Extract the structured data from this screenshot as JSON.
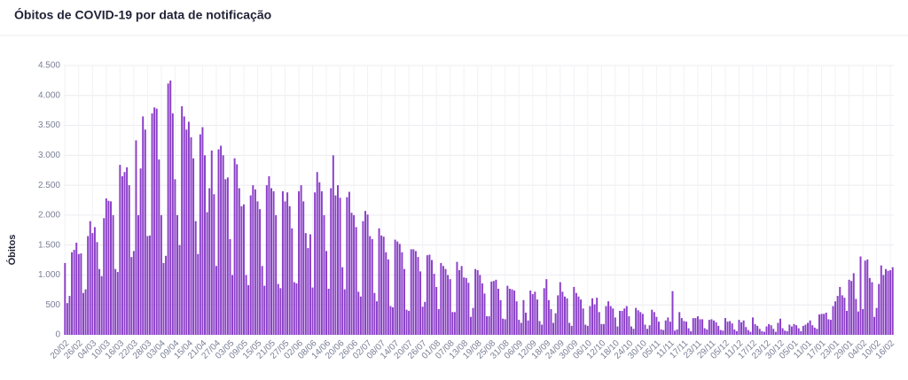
{
  "chart_data": {
    "type": "bar",
    "title": "Óbitos de COVID-19 por data de notificação",
    "y_label": "Óbitos",
    "color": "#8b3fc8",
    "grid": true,
    "ylim": [
      0,
      4500
    ],
    "yticks": [
      0,
      500,
      {
        "value": 1000,
        "label": "1.000"
      },
      {
        "value": 1500,
        "label": "1.500"
      },
      {
        "value": 2000,
        "label": "2.000"
      },
      {
        "value": 2500,
        "label": "2.500"
      },
      {
        "value": 3000,
        "label": "3.000"
      },
      {
        "value": 3500,
        "label": "3.500"
      },
      {
        "value": 4000,
        "label": "4.000"
      },
      {
        "value": 4500,
        "label": "4.500"
      }
    ],
    "categories": [
      "20/02",
      null,
      null,
      null,
      null,
      null,
      "26/02",
      null,
      null,
      null,
      null,
      null,
      "04/03",
      null,
      null,
      null,
      null,
      null,
      "10/03",
      null,
      null,
      null,
      null,
      null,
      "16/03",
      null,
      null,
      null,
      null,
      null,
      "22/03",
      null,
      null,
      null,
      null,
      null,
      "28/03",
      null,
      null,
      null,
      null,
      null,
      "03/04",
      null,
      null,
      null,
      null,
      null,
      "09/04",
      null,
      null,
      null,
      null,
      null,
      "15/04",
      null,
      null,
      null,
      null,
      null,
      "21/04",
      null,
      null,
      null,
      null,
      null,
      "27/04",
      null,
      null,
      null,
      null,
      null,
      "03/05",
      null,
      null,
      null,
      null,
      null,
      "09/05",
      null,
      null,
      null,
      null,
      null,
      "15/05",
      null,
      null,
      null,
      null,
      null,
      "21/05",
      null,
      null,
      null,
      null,
      null,
      "27/05",
      null,
      null,
      null,
      null,
      null,
      "02/06",
      null,
      null,
      null,
      null,
      null,
      "08/06",
      null,
      null,
      null,
      null,
      null,
      "14/06",
      null,
      null,
      null,
      null,
      null,
      "20/06",
      null,
      null,
      null,
      null,
      null,
      "26/06",
      null,
      null,
      null,
      null,
      null,
      "02/07",
      null,
      null,
      null,
      null,
      null,
      "08/07",
      null,
      null,
      null,
      null,
      null,
      "14/07",
      null,
      null,
      null,
      null,
      null,
      "20/07",
      null,
      null,
      null,
      null,
      null,
      "26/07",
      null,
      null,
      null,
      null,
      null,
      "01/08",
      null,
      null,
      null,
      null,
      null,
      "07/08",
      null,
      null,
      null,
      null,
      null,
      "13/08",
      null,
      null,
      null,
      null,
      null,
      "19/08",
      null,
      null,
      null,
      null,
      null,
      "25/08",
      null,
      null,
      null,
      null,
      null,
      "31/08",
      null,
      null,
      null,
      null,
      null,
      "06/09",
      null,
      null,
      null,
      null,
      null,
      "12/09",
      null,
      null,
      null,
      null,
      null,
      "18/09",
      null,
      null,
      null,
      null,
      null,
      "24/09",
      null,
      null,
      null,
      null,
      null,
      "30/09",
      null,
      null,
      null,
      null,
      null,
      "06/10",
      null,
      null,
      null,
      null,
      null,
      "12/10",
      null,
      null,
      null,
      null,
      null,
      "18/10",
      null,
      null,
      null,
      null,
      null,
      "24/10",
      null,
      null,
      null,
      null,
      null,
      "30/10",
      null,
      null,
      null,
      null,
      null,
      "05/11",
      null,
      null,
      null,
      null,
      null,
      "11/11",
      null,
      null,
      null,
      null,
      null,
      "17/11",
      null,
      null,
      null,
      null,
      null,
      "23/11",
      null,
      null,
      null,
      null,
      null,
      "29/11",
      null,
      null,
      null,
      null,
      null,
      "05/12",
      null,
      null,
      null,
      null,
      null,
      "11/12",
      null,
      null,
      null,
      null,
      null,
      "17/12",
      null,
      null,
      null,
      null,
      null,
      "23/12",
      null,
      null,
      null,
      null,
      null,
      "30/12",
      null,
      null,
      null,
      null,
      null,
      "05/01",
      null,
      null,
      null,
      null,
      null,
      "11/01",
      null,
      null,
      null,
      null,
      null,
      "17/01",
      null,
      null,
      null,
      null,
      null,
      "23/01",
      null,
      null,
      null,
      null,
      null,
      "29/01",
      null,
      null,
      null,
      null,
      null,
      "04/02",
      null,
      null,
      null,
      null,
      null,
      "10/02",
      null,
      null,
      null,
      null,
      null,
      "16/02",
      null
    ],
    "values": [
      1200,
      530,
      650,
      1380,
      1420,
      1540,
      1350,
      1360,
      700,
      760,
      1650,
      1900,
      1700,
      1800,
      1550,
      1100,
      980,
      1950,
      2280,
      2240,
      2230,
      2000,
      1100,
      1050,
      2840,
      2650,
      2720,
      2800,
      2500,
      1300,
      1400,
      3250,
      2000,
      2780,
      3650,
      3430,
      1650,
      1660,
      3700,
      3800,
      3780,
      2930,
      2000,
      1200,
      1320,
      4200,
      4250,
      3700,
      2600,
      2000,
      1500,
      3820,
      3650,
      3430,
      3560,
      3300,
      2950,
      1900,
      1350,
      3350,
      3470,
      3000,
      2050,
      2450,
      3080,
      2350,
      1150,
      3100,
      3160,
      3000,
      2600,
      2630,
      1600,
      1000,
      2950,
      2850,
      2450,
      2150,
      2180,
      1000,
      830,
      2330,
      2500,
      2430,
      2230,
      2100,
      1150,
      820,
      2500,
      2650,
      2450,
      2400,
      2000,
      850,
      780,
      2400,
      2230,
      2380,
      2150,
      1780,
      880,
      860,
      2400,
      2500,
      2230,
      1700,
      1450,
      1680,
      790,
      2380,
      2720,
      2550,
      2400,
      2000,
      1400,
      770,
      2450,
      3000,
      2330,
      2500,
      2290,
      1130,
      760,
      2300,
      2390,
      2040,
      2000,
      1800,
      720,
      640,
      1900,
      2070,
      2010,
      1650,
      1600,
      700,
      560,
      1780,
      1660,
      1640,
      1380,
      1260,
      480,
      460,
      1590,
      1560,
      1520,
      1380,
      1100,
      420,
      400,
      1430,
      1430,
      1400,
      1300,
      1060,
      470,
      550,
      1330,
      1340,
      1250,
      1020,
      800,
      430,
      1200,
      1150,
      1100,
      1000,
      930,
      380,
      380,
      1220,
      1080,
      1150,
      960,
      950,
      870,
      300,
      450,
      1100,
      1080,
      1000,
      860,
      690,
      310,
      310,
      890,
      900,
      920,
      770,
      580,
      270,
      260,
      820,
      770,
      760,
      740,
      560,
      250,
      200,
      580,
      370,
      240,
      740,
      680,
      720,
      590,
      230,
      170,
      780,
      930,
      580,
      430,
      200,
      360,
      660,
      880,
      720,
      640,
      610,
      200,
      150,
      800,
      700,
      640,
      590,
      440,
      170,
      150,
      480,
      610,
      510,
      620,
      380,
      180,
      180,
      480,
      560,
      480,
      440,
      290,
      140,
      400,
      400,
      440,
      480,
      310,
      140,
      100,
      450,
      410,
      380,
      350,
      170,
      100,
      160,
      420,
      380,
      300,
      220,
      90,
      80,
      240,
      290,
      220,
      730,
      70,
      90,
      380,
      280,
      230,
      220,
      110,
      60,
      280,
      280,
      310,
      260,
      260,
      110,
      90,
      250,
      260,
      240,
      210,
      150,
      80,
      70,
      280,
      220,
      230,
      190,
      90,
      60,
      250,
      210,
      240,
      130,
      80,
      50,
      290,
      180,
      150,
      100,
      60,
      50,
      140,
      180,
      160,
      100,
      50,
      200,
      270,
      110,
      70,
      60,
      170,
      140,
      180,
      160,
      110,
      60,
      150,
      170,
      200,
      240,
      160,
      120,
      100,
      340,
      350,
      350,
      370,
      260,
      250,
      480,
      560,
      650,
      800,
      660,
      620,
      400,
      920,
      900,
      1030,
      600,
      390,
      1310,
      430,
      1240,
      1260,
      950,
      880,
      300,
      450,
      850,
      1160,
      1000,
      1100,
      1070,
      1080,
      1130
    ]
  }
}
